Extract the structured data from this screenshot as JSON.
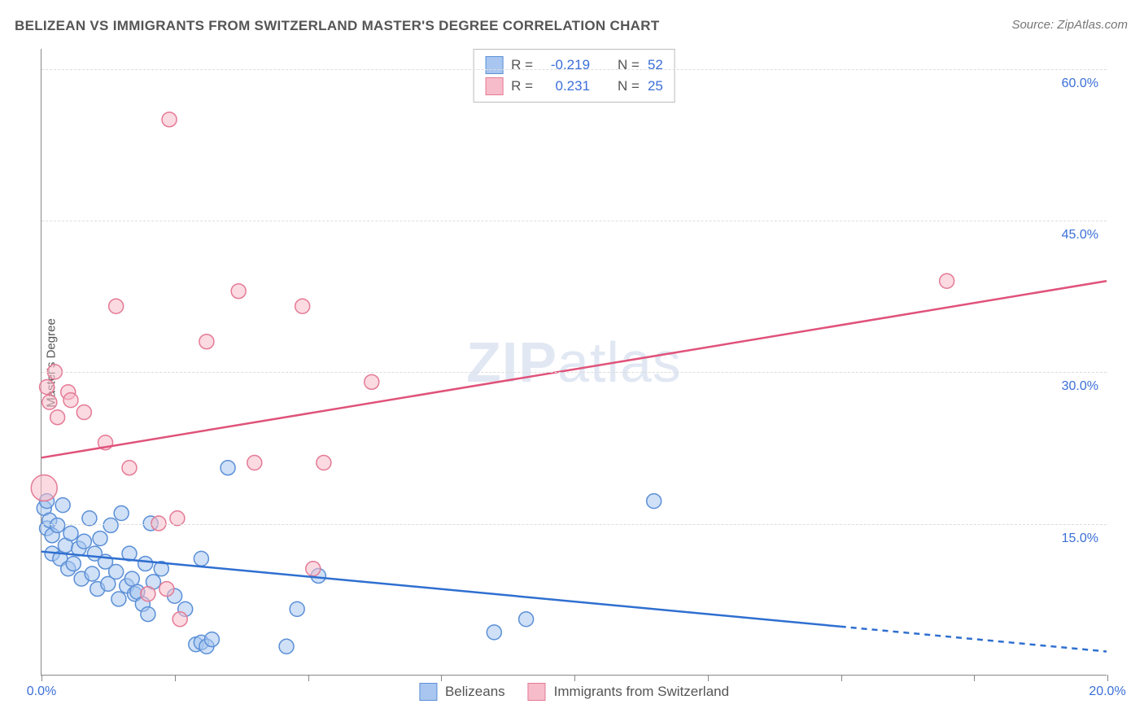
{
  "title": "BELIZEAN VS IMMIGRANTS FROM SWITZERLAND MASTER'S DEGREE CORRELATION CHART",
  "source": "Source: ZipAtlas.com",
  "ylabel": "Master's Degree",
  "watermark_bold": "ZIP",
  "watermark_light": "atlas",
  "chart": {
    "type": "scatter",
    "xlim": [
      0,
      20
    ],
    "ylim": [
      0,
      62
    ],
    "x_ticks": [
      0,
      2.5,
      5,
      7.5,
      10,
      12.5,
      15,
      17.5,
      20
    ],
    "x_tick_labels": {
      "0": "0.0%",
      "20": "20.0%"
    },
    "y_gridlines": [
      15,
      30,
      45,
      60
    ],
    "y_tick_labels": {
      "15": "15.0%",
      "30": "30.0%",
      "45": "45.0%",
      "60": "60.0%"
    },
    "background_color": "#ffffff",
    "grid_color": "#dddddd",
    "axis_color": "#888888",
    "label_color": "#3b6fd8",
    "marker_radius": 9,
    "marker_stroke_width": 1.5,
    "series": [
      {
        "name": "Belizeans",
        "fill": "#a8c6f0",
        "stroke": "#5b8fd6",
        "fill_opacity": 0.55,
        "trend": {
          "y_at_x0": 12.2,
          "y_at_x20": 2.3,
          "solid_until_x": 15,
          "color": "#2f6fd0",
          "width": 2.5
        },
        "R": "-0.219",
        "N": "52",
        "points": [
          [
            0.05,
            16.5
          ],
          [
            0.1,
            17.2
          ],
          [
            0.1,
            14.5
          ],
          [
            0.15,
            15.3
          ],
          [
            0.2,
            13.8
          ],
          [
            0.2,
            12.0
          ],
          [
            0.3,
            14.8
          ],
          [
            0.35,
            11.5
          ],
          [
            0.4,
            16.8
          ],
          [
            0.45,
            12.8
          ],
          [
            0.5,
            10.5
          ],
          [
            0.55,
            14.0
          ],
          [
            0.6,
            11.0
          ],
          [
            0.7,
            12.5
          ],
          [
            0.75,
            9.5
          ],
          [
            0.8,
            13.2
          ],
          [
            0.9,
            15.5
          ],
          [
            0.95,
            10.0
          ],
          [
            1.0,
            12.0
          ],
          [
            1.05,
            8.5
          ],
          [
            1.1,
            13.5
          ],
          [
            1.2,
            11.2
          ],
          [
            1.25,
            9.0
          ],
          [
            1.3,
            14.8
          ],
          [
            1.4,
            10.2
          ],
          [
            1.45,
            7.5
          ],
          [
            1.5,
            16.0
          ],
          [
            1.6,
            8.8
          ],
          [
            1.65,
            12.0
          ],
          [
            1.7,
            9.5
          ],
          [
            1.75,
            8.0
          ],
          [
            1.8,
            8.2
          ],
          [
            1.9,
            7.0
          ],
          [
            1.95,
            11.0
          ],
          [
            2.0,
            6.0
          ],
          [
            2.05,
            15.0
          ],
          [
            2.1,
            9.2
          ],
          [
            2.25,
            10.5
          ],
          [
            2.5,
            7.8
          ],
          [
            2.7,
            6.5
          ],
          [
            2.9,
            3.0
          ],
          [
            3.0,
            3.2
          ],
          [
            3.1,
            2.8
          ],
          [
            3.2,
            3.5
          ],
          [
            3.5,
            20.5
          ],
          [
            4.6,
            2.8
          ],
          [
            4.8,
            6.5
          ],
          [
            5.2,
            9.8
          ],
          [
            8.5,
            4.2
          ],
          [
            9.1,
            5.5
          ],
          [
            11.5,
            17.2
          ],
          [
            3.0,
            11.5
          ]
        ]
      },
      {
        "name": "Immigrants from Switzerland",
        "fill": "#f7bcc9",
        "stroke": "#e47a95",
        "fill_opacity": 0.55,
        "trend": {
          "y_at_x0": 21.5,
          "y_at_x20": 39.0,
          "solid_until_x": 20,
          "color": "#e0527a",
          "width": 2.5
        },
        "R": "0.231",
        "N": "25",
        "points": [
          [
            0.05,
            18.5,
            16
          ],
          [
            0.1,
            28.5
          ],
          [
            0.15,
            27.0
          ],
          [
            0.25,
            30.0
          ],
          [
            0.3,
            25.5
          ],
          [
            0.5,
            28.0
          ],
          [
            0.55,
            27.2
          ],
          [
            0.8,
            26.0
          ],
          [
            1.2,
            23.0
          ],
          [
            1.4,
            36.5
          ],
          [
            1.65,
            20.5
          ],
          [
            2.0,
            8.0
          ],
          [
            2.2,
            15.0
          ],
          [
            2.35,
            8.5
          ],
          [
            2.4,
            55.0
          ],
          [
            2.55,
            15.5
          ],
          [
            2.6,
            5.5
          ],
          [
            3.1,
            33.0
          ],
          [
            3.7,
            38.0
          ],
          [
            4.0,
            21.0
          ],
          [
            4.9,
            36.5
          ],
          [
            5.1,
            10.5
          ],
          [
            5.3,
            21.0
          ],
          [
            6.2,
            29.0
          ],
          [
            17.0,
            39.0
          ]
        ]
      }
    ]
  },
  "legend_top": {
    "rows": [
      {
        "swatch_fill": "#a8c6f0",
        "swatch_stroke": "#5b8fd6",
        "r_label": "R =",
        "r_value": "-0.219",
        "n_label": "N =",
        "n_value": "52"
      },
      {
        "swatch_fill": "#f7bcc9",
        "swatch_stroke": "#e47a95",
        "r_label": "R =",
        "r_value": "0.231",
        "n_label": "N =",
        "n_value": "25"
      }
    ]
  },
  "legend_bottom": {
    "items": [
      {
        "swatch_fill": "#a8c6f0",
        "swatch_stroke": "#5b8fd6",
        "label": "Belizeans"
      },
      {
        "swatch_fill": "#f7bcc9",
        "swatch_stroke": "#e47a95",
        "label": "Immigrants from Switzerland"
      }
    ]
  }
}
